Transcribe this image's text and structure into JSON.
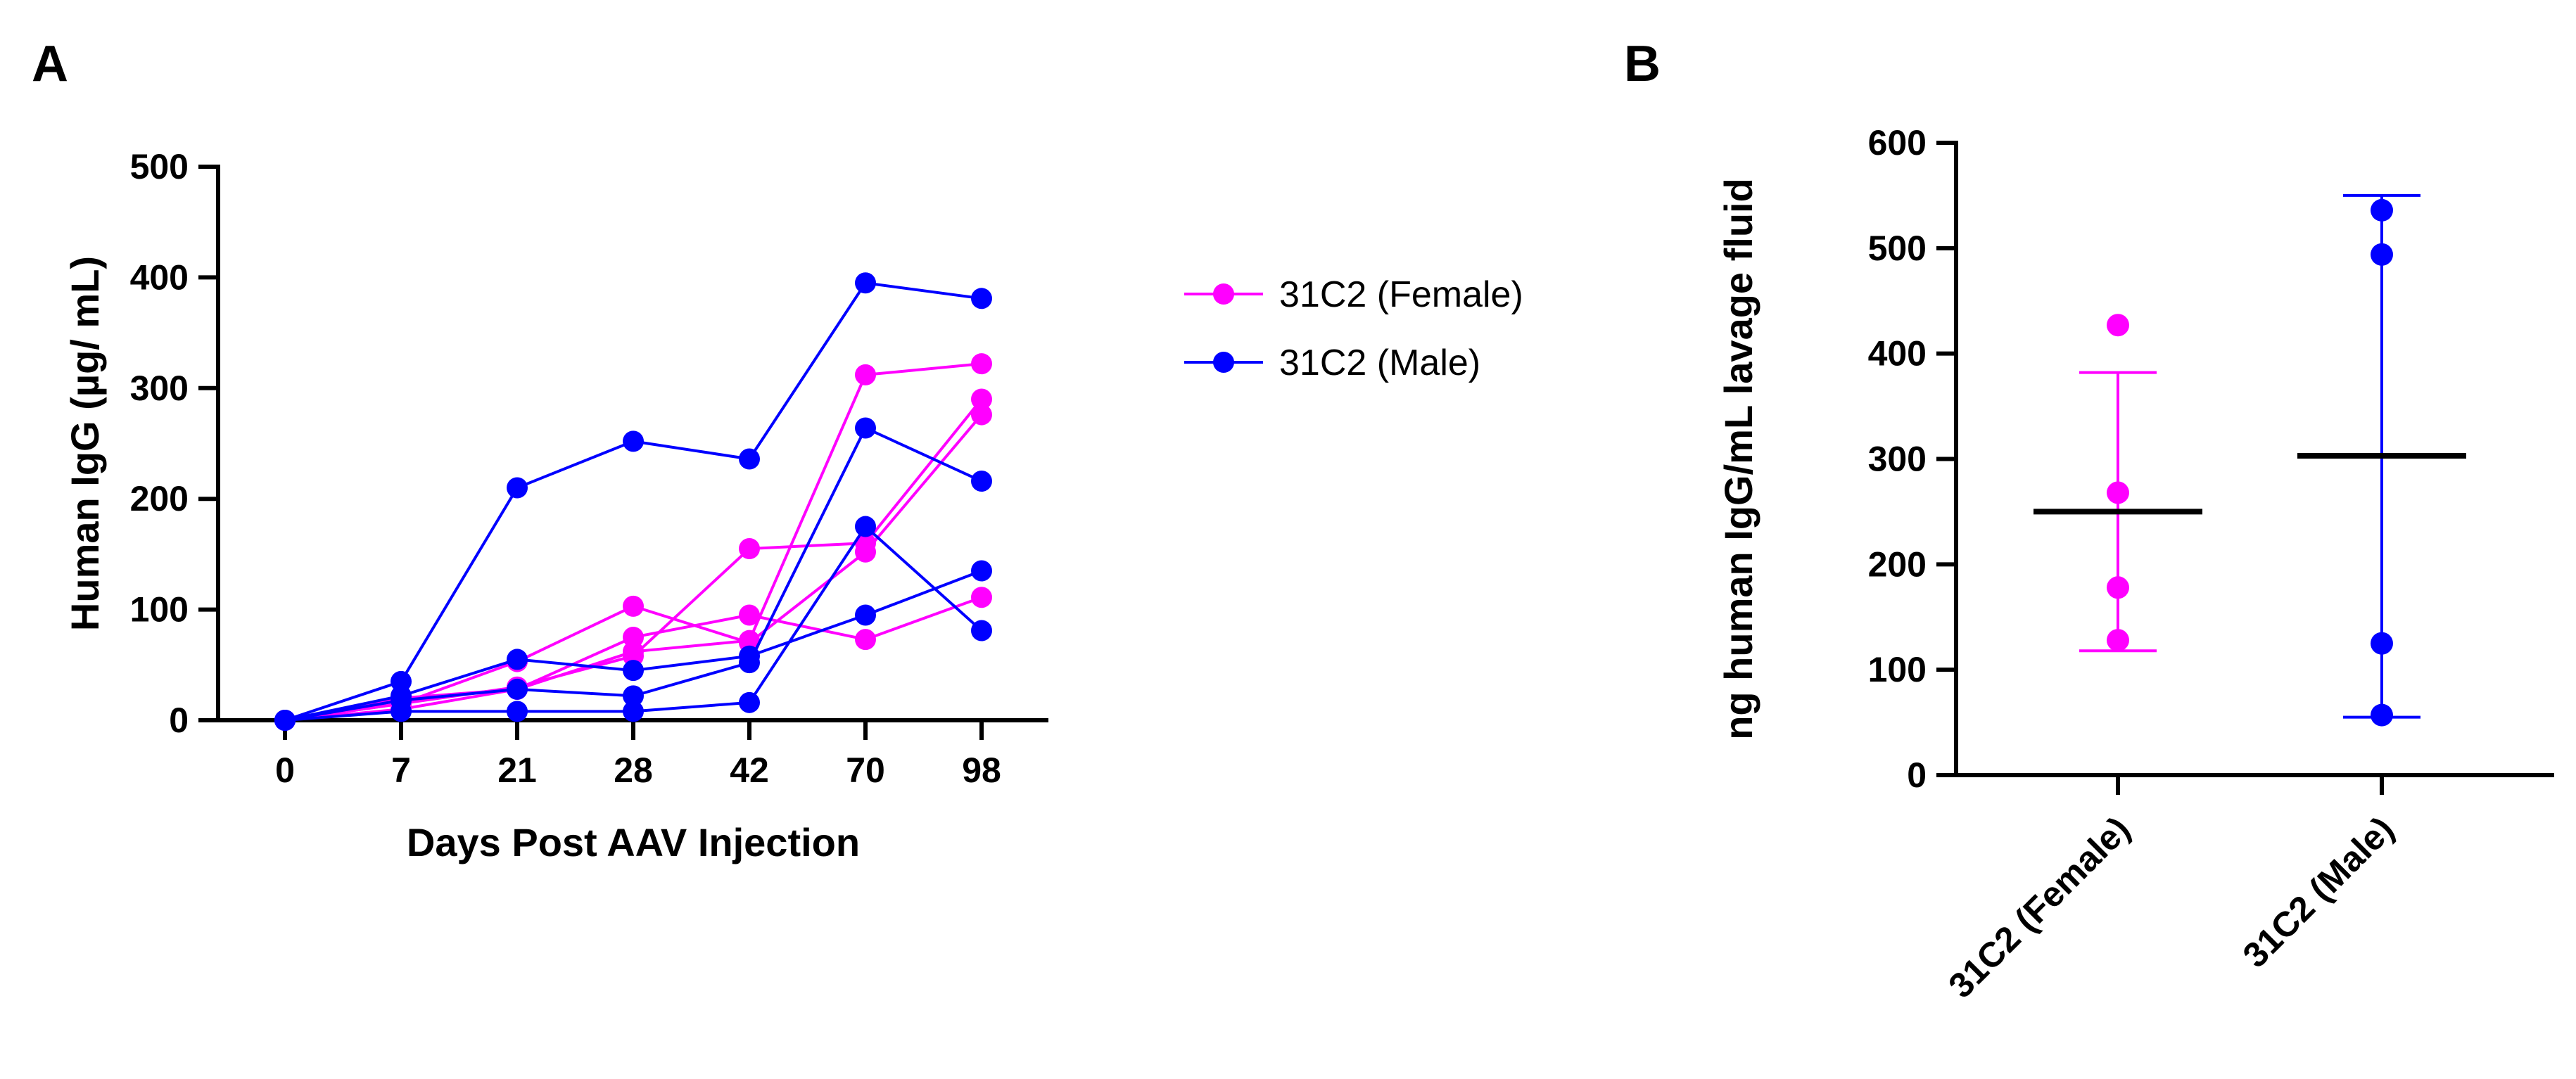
{
  "figure": {
    "panel_a_label": "A",
    "panel_b_label": "B"
  },
  "colors": {
    "female": "#ff00ff",
    "male": "#0000ff",
    "axis": "#000000",
    "mean": "#000000"
  },
  "chart_data": [
    {
      "type": "line",
      "panel": "A",
      "title": "",
      "xlabel": "Days Post AAV Injection",
      "ylabel": "Human IgG (µg/ mL)",
      "categories": [
        "0",
        "7",
        "21",
        "28",
        "42",
        "70",
        "98"
      ],
      "ylim": [
        0,
        500
      ],
      "yticks": [
        0,
        100,
        200,
        300,
        400,
        500
      ],
      "legend": [
        {
          "label": "31C2 (Female)",
          "color_key": "female"
        },
        {
          "label": "31C2 (Male)",
          "color_key": "male"
        }
      ],
      "series": [
        {
          "name": "31C2 (Female) 1",
          "group": "female",
          "values": [
            0,
            15,
            30,
            58,
            155,
            160,
            290
          ]
        },
        {
          "name": "31C2 (Female) 2",
          "group": "female",
          "values": [
            0,
            20,
            28,
            75,
            95,
            73,
            111
          ]
        },
        {
          "name": "31C2 (Female) 3",
          "group": "female",
          "values": [
            0,
            15,
            53,
            103,
            70,
            152,
            276
          ]
        },
        {
          "name": "31C2 (Female) 4",
          "group": "female",
          "values": [
            0,
            10,
            28,
            62,
            72,
            312,
            322
          ]
        },
        {
          "name": "31C2 (Male) 1",
          "group": "male",
          "values": [
            0,
            35,
            210,
            252,
            236,
            395,
            381
          ]
        },
        {
          "name": "31C2 (Male) 2",
          "group": "male",
          "values": [
            0,
            22,
            55,
            45,
            58,
            95,
            135
          ]
        },
        {
          "name": "31C2 (Male) 3",
          "group": "male",
          "values": [
            0,
            18,
            28,
            22,
            52,
            264,
            216
          ]
        },
        {
          "name": "31C2 (Male) 4",
          "group": "male",
          "values": [
            0,
            8,
            8,
            8,
            16,
            175,
            81
          ]
        }
      ]
    },
    {
      "type": "scatter",
      "panel": "B",
      "title": "",
      "xlabel": "",
      "ylabel": "ng human IgG/mL lavage fluid",
      "categories": [
        "31C2 (Female)",
        "31C2 (Male)"
      ],
      "ylim": [
        0,
        600
      ],
      "yticks": [
        0,
        100,
        200,
        300,
        400,
        500,
        600
      ],
      "groups": [
        {
          "name": "31C2 (Female)",
          "color_key": "female",
          "points": [
            427,
            268,
            178,
            128
          ],
          "mean": 250,
          "error_low": 118,
          "error_high": 382
        },
        {
          "name": "31C2 (Male)",
          "color_key": "male",
          "points": [
            536,
            494,
            125,
            57
          ],
          "mean": 303,
          "error_low": 55,
          "error_high": 550
        }
      ]
    }
  ]
}
